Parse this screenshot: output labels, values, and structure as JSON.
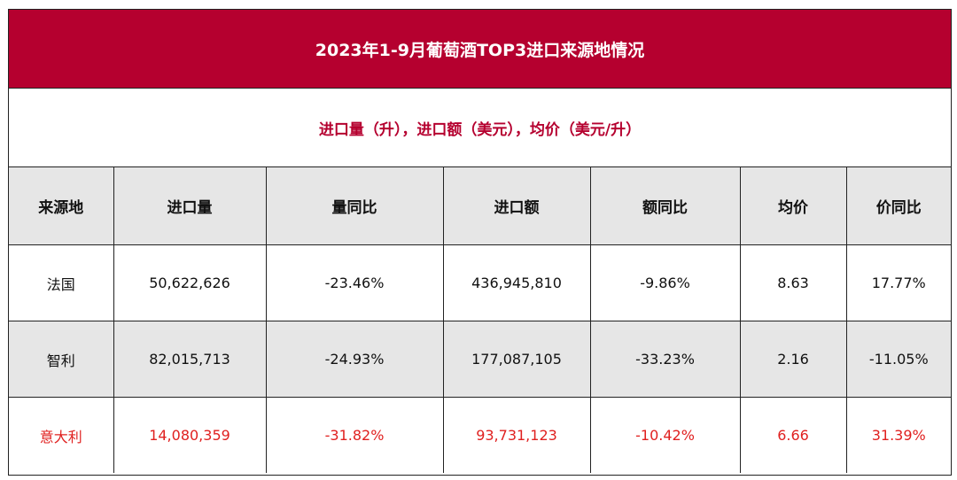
{
  "title": "2023年1-9月葡萄酒TOP3进口来源地情况",
  "subtitle": "进口量（升），进口额（美元），均价（美元/升）",
  "colors": {
    "accent": "#b5002f",
    "highlight_text": "#e0201f",
    "shade": "#e6e6e6"
  },
  "table": {
    "headers": [
      "来源地",
      "进口量",
      "量同比",
      "进口额",
      "额同比",
      "均价",
      "价同比"
    ],
    "rows": [
      [
        "法国",
        "50,622,626",
        "-23.46%",
        "436,945,810",
        "-9.86%",
        "8.63",
        "17.77%"
      ],
      [
        "智利",
        "82,015,713",
        "-24.93%",
        "177,087,105",
        "-33.23%",
        "2.16",
        "-11.05%"
      ],
      [
        "意大利",
        "14,080,359",
        "-31.82%",
        "93,731,123",
        "-10.42%",
        "6.66",
        "31.39%"
      ]
    ]
  }
}
